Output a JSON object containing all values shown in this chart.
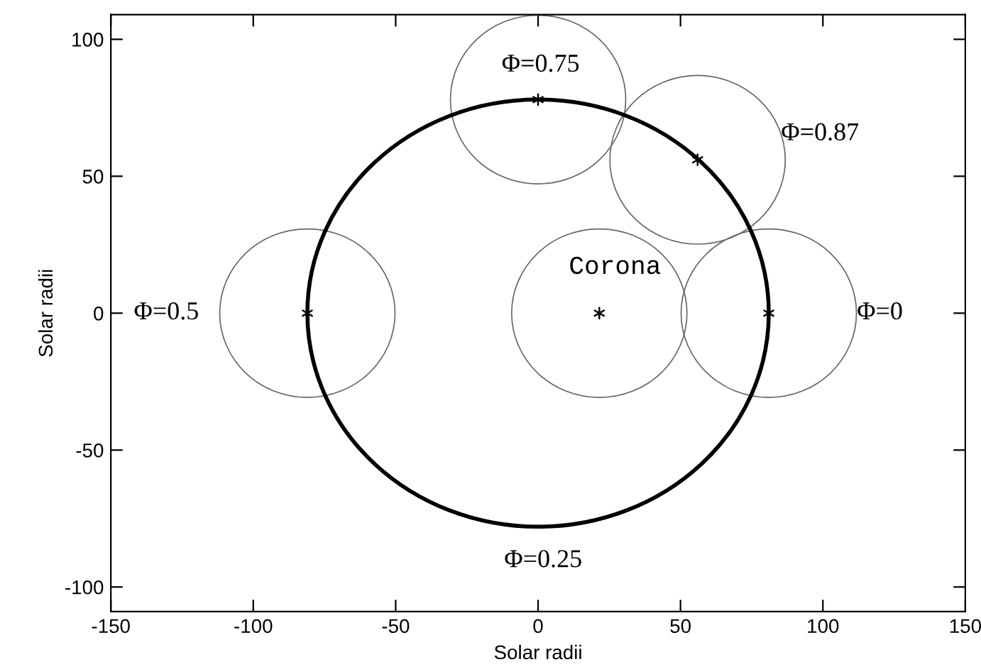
{
  "chart_data": {
    "type": "scatter",
    "xlabel": "Solar radii",
    "ylabel": "Solar radii",
    "xlim": [
      -150,
      150
    ],
    "ylim": [
      -109,
      109
    ],
    "xticks": [
      -150,
      -100,
      -50,
      0,
      50,
      100,
      150
    ],
    "yticks": [
      -100,
      -50,
      0,
      50,
      100
    ],
    "grid": false,
    "legend": false,
    "marker": "cross",
    "series": [
      {
        "color": "#000000",
        "x": [
          81,
          56,
          0,
          -81,
          21.5
        ],
        "values": [
          0,
          56,
          78,
          0,
          0
        ]
      }
    ],
    "annotations": [
      "Φ=0.75",
      "Φ=0.87",
      "Φ=0.5",
      "Φ=0",
      "Φ=0.25",
      "Corona"
    ]
  }
}
